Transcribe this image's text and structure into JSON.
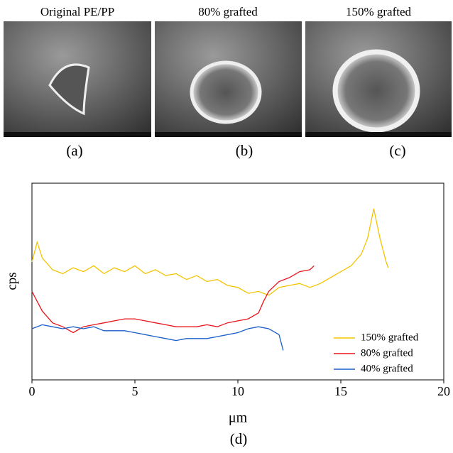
{
  "panels": [
    {
      "title": "Original PE/PP",
      "label": "(a)"
    },
    {
      "title": "80% grafted",
      "label": "(b)"
    },
    {
      "title": "150% grafted",
      "label": "(c)"
    }
  ],
  "chart_data": {
    "type": "line",
    "label": "(d)",
    "xlabel": "μm",
    "ylabel": "cps",
    "xlim": [
      0,
      20
    ],
    "xticks": [
      0,
      5,
      10,
      15,
      20
    ],
    "ylim": [
      0,
      100
    ],
    "legend": "lower right",
    "series": [
      {
        "name": "150% grafted",
        "color": "#f5c400",
        "x": [
          0,
          0.25,
          0.5,
          1,
          1.5,
          2,
          2.5,
          3,
          3.5,
          4,
          4.5,
          5,
          5.5,
          6,
          6.5,
          7,
          7.5,
          8,
          8.5,
          9,
          9.5,
          10,
          10.5,
          11,
          11.5,
          12,
          12.5,
          13,
          13.5,
          14,
          14.5,
          15,
          15.5,
          16,
          16.3,
          16.6,
          16.9,
          17.2,
          17.3
        ],
        "values": [
          60,
          70,
          62,
          56,
          54,
          57,
          55,
          58,
          54,
          57,
          55,
          58,
          54,
          56,
          53,
          54,
          51,
          53,
          50,
          51,
          48,
          47,
          44,
          45,
          43,
          47,
          48,
          49,
          47,
          49,
          52,
          55,
          58,
          64,
          72,
          87,
          72,
          60,
          57
        ]
      },
      {
        "name": "80% grafted",
        "color": "#e8141c",
        "x": [
          0,
          0.5,
          1,
          1.5,
          2,
          2.5,
          3,
          3.5,
          4,
          4.5,
          5,
          5.5,
          6,
          6.5,
          7,
          7.5,
          8,
          8.5,
          9,
          9.5,
          10,
          10.5,
          11,
          11.25,
          11.5,
          12,
          12.5,
          13,
          13.5,
          13.7
        ],
        "values": [
          45,
          35,
          29,
          27,
          24,
          27,
          28,
          29,
          30,
          31,
          31,
          30,
          29,
          28,
          27,
          27,
          27,
          28,
          27,
          29,
          30,
          31,
          34,
          40,
          45,
          50,
          52,
          55,
          56,
          58
        ]
      },
      {
        "name": "40% grafted",
        "color": "#1a5fc8",
        "x": [
          0,
          0.5,
          1,
          1.5,
          2,
          2.5,
          3,
          3.5,
          4,
          4.5,
          5,
          5.5,
          6,
          6.5,
          7,
          7.5,
          8,
          8.5,
          9,
          9.5,
          10,
          10.5,
          11,
          11.5,
          12,
          12.2
        ],
        "values": [
          26,
          28,
          27,
          26,
          27,
          26,
          27,
          25,
          25,
          25,
          24,
          23,
          22,
          21,
          20,
          21,
          21,
          21,
          22,
          23,
          24,
          26,
          27,
          26,
          23,
          15
        ]
      }
    ]
  }
}
